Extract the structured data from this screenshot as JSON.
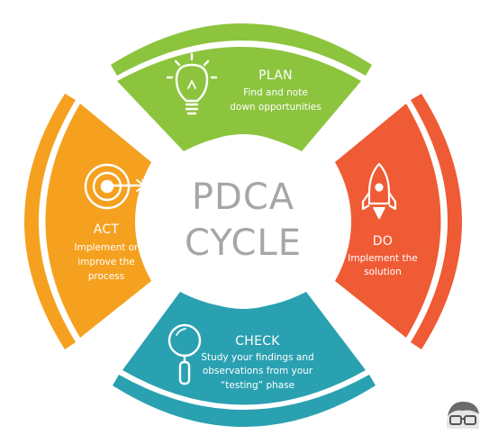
{
  "diagram": {
    "center_line1": "PDCA",
    "center_line2": "CYCLE",
    "sections": {
      "plan": {
        "title": "PLAN",
        "desc": [
          "Find and note",
          "down opportunities"
        ],
        "color": "#8cc43e",
        "icon": "lightbulb-icon"
      },
      "do": {
        "title": "DO",
        "desc": [
          "Implement the",
          "solution"
        ],
        "color": "#ef5b35",
        "icon": "rocket-icon"
      },
      "check": {
        "title": "CHECK",
        "desc": [
          "Study your findings and",
          "observations from your",
          "“testing” phase"
        ],
        "color": "#2aa1b1",
        "icon": "magnifier-icon"
      },
      "act": {
        "title": "ACT",
        "desc": [
          "Implement or",
          "improve the",
          "process"
        ],
        "color": "#f5a11f",
        "icon": "target-icon"
      }
    },
    "logo_icon": "glasses-avatar-logo"
  }
}
